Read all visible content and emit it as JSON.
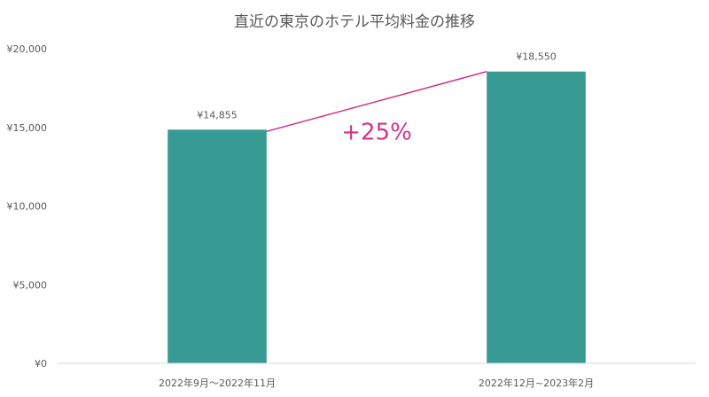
{
  "chart_data": {
    "type": "bar",
    "title": "直近の東京のホテル平均料金の推移",
    "categories": [
      "2022年9月～2022年11月",
      "2022年12月~2023年2月"
    ],
    "values": [
      14855,
      18550
    ],
    "data_labels": [
      "¥14,855",
      "¥18,550"
    ],
    "ylim": [
      0,
      20000
    ],
    "yticks": [
      0,
      5000,
      10000,
      15000,
      20000
    ],
    "ytick_labels": [
      "¥0",
      "¥5,000",
      "¥10,000",
      "¥15,000",
      "¥20,000"
    ],
    "xlabel": "",
    "ylabel": "",
    "grid": false,
    "legend": "none",
    "bar_color": "#379b93",
    "annotation": {
      "text": "+25%",
      "color": "#d63384",
      "connects": [
        0,
        1
      ]
    }
  }
}
